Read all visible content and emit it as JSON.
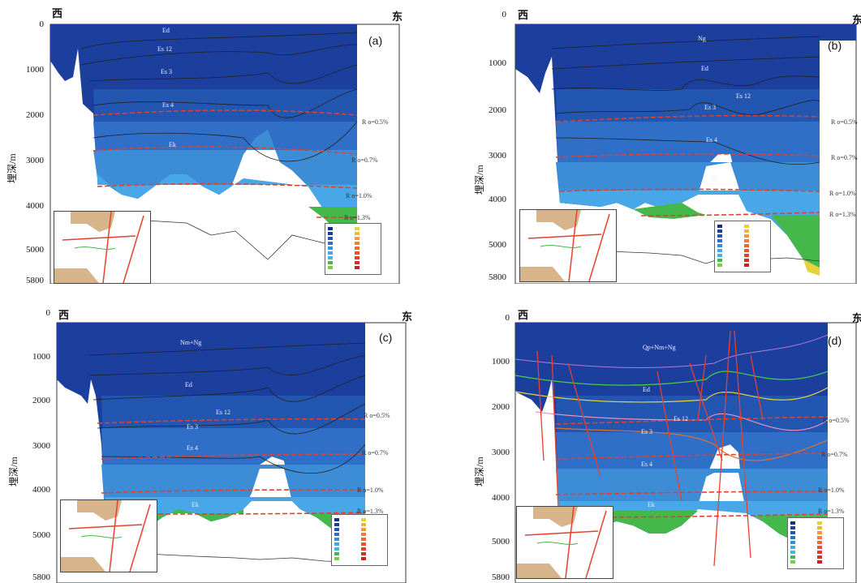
{
  "figure": {
    "y_axis_label": "埋深/m",
    "west_label": "西",
    "east_label": "东",
    "depth_ticks": [
      "0",
      "1000",
      "2000",
      "3000",
      "4000",
      "5000",
      "5800"
    ],
    "colors": {
      "deep_blue": "#1c3f9e",
      "mid_blue": "#2f6fc8",
      "light_blue": "#48a7e6",
      "cyan": "#3db6e8",
      "green": "#45b84b",
      "yellow": "#e8d23a",
      "ro_line": "#e0412a",
      "fault": "#e8402e"
    }
  },
  "panels": [
    {
      "label": "(a)",
      "units": [
        "Ed",
        "Es 12",
        "Es 3",
        "Es 4",
        "Ek"
      ],
      "ro_labels": [
        "R o=0.5%",
        "R o=0.7%",
        "R o=1.0%",
        "R o=1.3%"
      ]
    },
    {
      "label": "(b)",
      "units": [
        "Ng",
        "Ed",
        "Es 12",
        "Es 3",
        "Es 4",
        "Ek"
      ],
      "ro_labels": [
        "R o=0.5%",
        "R o=0.7%",
        "R o=1.0%",
        "R o=1.3%"
      ]
    },
    {
      "label": "(c)",
      "units": [
        "Nm+Ng",
        "Ed",
        "Es 12",
        "Es 3",
        "Es 4",
        "Ek"
      ],
      "ro_labels": [
        "R o=0.5%",
        "R o=0.7%",
        "R o=1.0%",
        "R o=1.3%"
      ]
    },
    {
      "label": "(d)",
      "units": [
        "Qp+Nm+Ng",
        "Ed",
        "Es 12",
        "Es 3",
        "Es 4",
        "Ek"
      ],
      "ro_labels": [
        "R o=0.5%",
        "R o=0.7%",
        "R o=1.0%",
        "R o=1.3%"
      ]
    }
  ]
}
